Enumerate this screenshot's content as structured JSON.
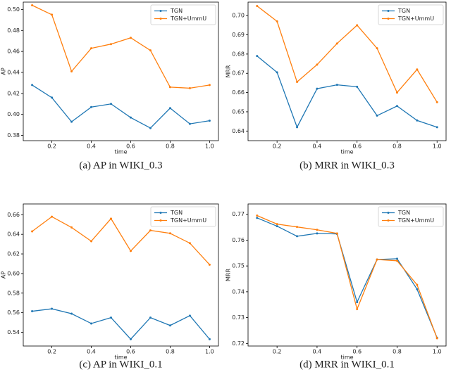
{
  "chart_data": [
    {
      "type": "line",
      "caption": "(a) AP in WIKI_0.3",
      "xlabel": "time",
      "ylabel": "AP",
      "x": [
        0.1,
        0.2,
        0.3,
        0.4,
        0.5,
        0.6,
        0.7,
        0.8,
        0.9,
        1.0
      ],
      "series": [
        {
          "name": "TGN",
          "color": "#1f77b4",
          "values": [
            0.428,
            0.416,
            0.393,
            0.407,
            0.41,
            0.397,
            0.387,
            0.406,
            0.391,
            0.394
          ]
        },
        {
          "name": "TGN+UmmU",
          "color": "#ff7f0e",
          "values": [
            0.504,
            0.495,
            0.441,
            0.463,
            0.467,
            0.473,
            0.461,
            0.426,
            0.425,
            0.428
          ]
        }
      ],
      "xlim": [
        0.055,
        1.045
      ],
      "xticks": [
        0.2,
        0.4,
        0.6,
        0.8,
        {
          "value": 1.0,
          "label": "1.0"
        }
      ],
      "ylim": [
        0.375,
        0.507
      ],
      "yticks": [
        0.38,
        {
          "value": 0.4,
          "label": "0.40"
        },
        0.42,
        0.44,
        0.46,
        0.48,
        {
          "value": 0.5,
          "label": "0.50"
        }
      ],
      "legend": "upper right"
    },
    {
      "type": "line",
      "caption": "(b) MRR in WIKI_0.3",
      "xlabel": "time",
      "ylabel": "MRR",
      "x": [
        0.1,
        0.2,
        0.3,
        0.4,
        0.5,
        0.6,
        0.7,
        0.8,
        0.9,
        1.0
      ],
      "series": [
        {
          "name": "TGN",
          "color": "#1f77b4",
          "values": [
            0.679,
            0.6705,
            0.642,
            0.662,
            0.664,
            0.663,
            0.648,
            0.653,
            0.6455,
            0.642
          ]
        },
        {
          "name": "TGN+UmmU",
          "color": "#ff7f0e",
          "values": [
            0.705,
            0.697,
            0.6655,
            0.6745,
            0.6855,
            0.695,
            0.683,
            0.66,
            0.672,
            0.655
          ]
        }
      ],
      "xlim": [
        0.055,
        1.045
      ],
      "xticks": [
        0.2,
        0.4,
        0.6,
        0.8,
        {
          "value": 1.0,
          "label": "1.0"
        }
      ],
      "ylim": [
        0.635,
        0.707
      ],
      "yticks": [
        0.64,
        0.65,
        0.66,
        0.67,
        0.68,
        0.69,
        {
          "value": 0.7,
          "label": "0.70"
        }
      ],
      "legend": "upper right"
    },
    {
      "type": "line",
      "caption": "(c) AP in WIKI_0.1",
      "xlabel": "time",
      "ylabel": "AP",
      "x": [
        0.1,
        0.2,
        0.3,
        0.4,
        0.5,
        0.6,
        0.7,
        0.8,
        0.9,
        1.0
      ],
      "series": [
        {
          "name": "TGN",
          "color": "#1f77b4",
          "values": [
            0.5615,
            0.564,
            0.559,
            0.549,
            0.555,
            0.533,
            0.555,
            0.547,
            0.557,
            0.533
          ]
        },
        {
          "name": "TGN+UmmU",
          "color": "#ff7f0e",
          "values": [
            0.643,
            0.658,
            0.647,
            0.633,
            0.656,
            0.623,
            0.644,
            0.641,
            0.631,
            0.609
          ]
        }
      ],
      "xlim": [
        0.055,
        1.045
      ],
      "xticks": [
        0.2,
        0.4,
        0.6,
        0.8,
        {
          "value": 1.0,
          "label": "1.0"
        }
      ],
      "ylim": [
        0.526,
        0.671
      ],
      "yticks": [
        0.54,
        0.56,
        0.58,
        {
          "value": 0.6,
          "label": "0.60"
        },
        0.62,
        0.64,
        0.66
      ],
      "legend": "upper right"
    },
    {
      "type": "line",
      "caption": "(d) MRR in WIKI_0.1",
      "xlabel": "time",
      "ylabel": "MRR",
      "x": [
        0.1,
        0.2,
        0.3,
        0.4,
        0.5,
        0.6,
        0.7,
        0.8,
        0.9,
        1.0
      ],
      "series": [
        {
          "name": "TGN",
          "color": "#1f77b4",
          "values": [
            0.7686,
            0.7654,
            0.7615,
            0.7626,
            0.7624,
            0.736,
            0.7525,
            0.7528,
            0.741,
            0.7222
          ]
        },
        {
          "name": "TGN+UmmU",
          "color": "#ff7f0e",
          "values": [
            0.7695,
            0.7662,
            0.7651,
            0.764,
            0.7626,
            0.7333,
            0.7525,
            0.752,
            0.7427,
            0.722
          ]
        }
      ],
      "xlim": [
        0.055,
        1.045
      ],
      "xticks": [
        0.2,
        0.4,
        0.6,
        0.8,
        {
          "value": 1.0,
          "label": "1.0"
        }
      ],
      "ylim": [
        0.719,
        0.774
      ],
      "yticks": [
        {
          "value": 0.72,
          "label": "0.72"
        },
        0.73,
        0.74,
        0.75,
        0.76,
        0.77
      ],
      "legend": "upper right"
    }
  ]
}
